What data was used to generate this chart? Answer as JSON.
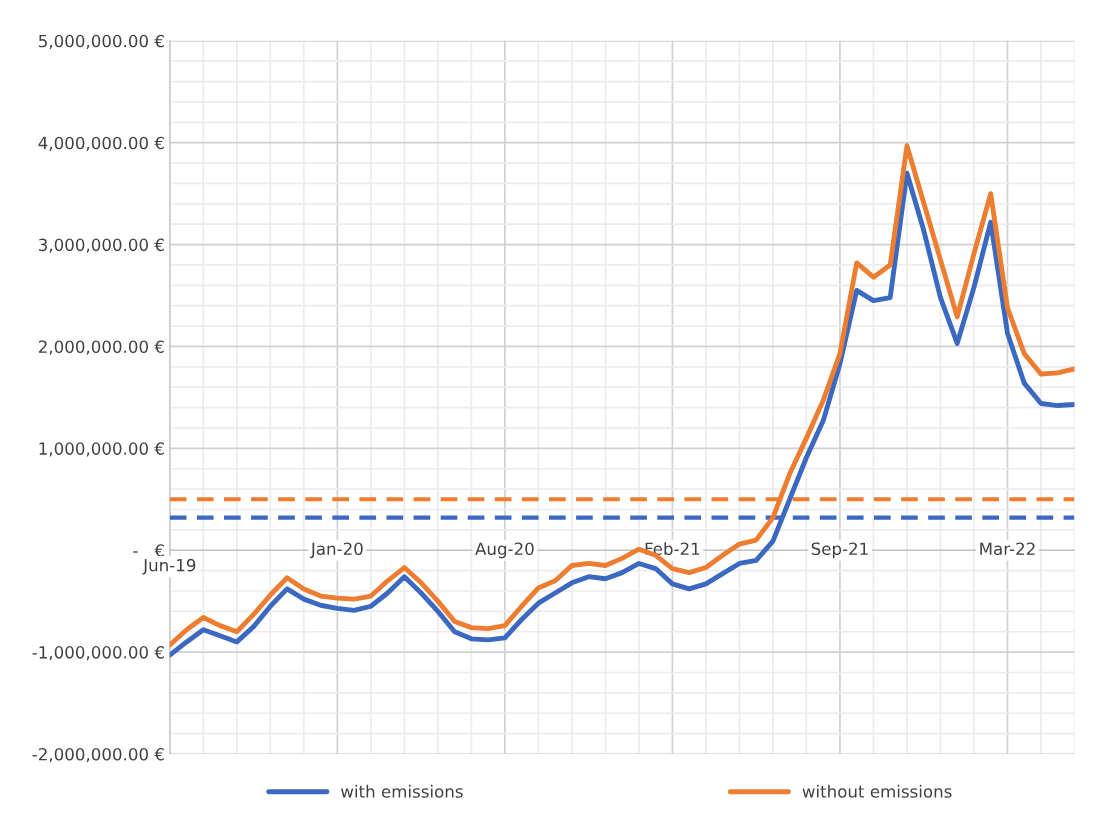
{
  "chart_data": {
    "type": "line",
    "categories": [
      "Jun-19",
      null,
      null,
      null,
      null,
      null,
      null,
      null,
      null,
      null,
      "Jan-20",
      null,
      null,
      null,
      null,
      null,
      null,
      null,
      null,
      null,
      "Aug-20",
      null,
      null,
      null,
      null,
      null,
      null,
      null,
      null,
      null,
      "Feb-21",
      null,
      null,
      null,
      null,
      null,
      null,
      null,
      null,
      null,
      "Sep-21",
      null,
      null,
      null,
      null,
      null,
      null,
      null,
      null,
      null,
      "Mar-22",
      null,
      null,
      null,
      null
    ],
    "series": [
      {
        "name": "with emissions",
        "color": "#3b68c0",
        "values": [
          -1030000,
          -900000,
          -780000,
          -840000,
          -900000,
          -750000,
          -550000,
          -380000,
          -480000,
          -540000,
          -570000,
          -590000,
          -550000,
          -420000,
          -260000,
          -420000,
          -600000,
          -800000,
          -870000,
          -880000,
          -860000,
          -680000,
          -520000,
          -420000,
          -320000,
          -260000,
          -280000,
          -220000,
          -130000,
          -180000,
          -330000,
          -380000,
          -330000,
          -230000,
          -130000,
          -100000,
          90000,
          500000,
          910000,
          1270000,
          1830000,
          2550000,
          2450000,
          2480000,
          3700000,
          3140000,
          2480000,
          2030000,
          2580000,
          3220000,
          2130000,
          1640000,
          1440000,
          1420000,
          1430000
        ]
      },
      {
        "name": "without emissions",
        "color": "#ed7d31",
        "values": [
          -930000,
          -780000,
          -660000,
          -740000,
          -800000,
          -630000,
          -440000,
          -270000,
          -380000,
          -450000,
          -470000,
          -480000,
          -450000,
          -300000,
          -170000,
          -320000,
          -500000,
          -700000,
          -760000,
          -770000,
          -740000,
          -550000,
          -370000,
          -300000,
          -150000,
          -130000,
          -150000,
          -80000,
          10000,
          -50000,
          -180000,
          -220000,
          -170000,
          -50000,
          60000,
          100000,
          320000,
          750000,
          1100000,
          1470000,
          1930000,
          2820000,
          2680000,
          2800000,
          3970000,
          3410000,
          2850000,
          2290000,
          2910000,
          3500000,
          2380000,
          1930000,
          1730000,
          1740000,
          1780000
        ]
      }
    ],
    "ylim": [
      -2000000,
      5000000
    ],
    "yticks": [
      {
        "value": -2000000,
        "label": "-2,000,000.00 €"
      },
      {
        "value": -1000000,
        "label": "-1,000,000.00 €"
      },
      {
        "value": 0,
        "label": "-   €"
      },
      {
        "value": 1000000,
        "label": "1,000,000.00 €"
      },
      {
        "value": 2000000,
        "label": "2,000,000.00 €"
      },
      {
        "value": 3000000,
        "label": "3,000,000.00 €"
      },
      {
        "value": 4000000,
        "label": "4,000,000.00 €"
      },
      {
        "value": 5000000,
        "label": "5,000,000.00 €"
      }
    ],
    "ref_lines": [
      {
        "axis": "y",
        "value": 500000,
        "color": "#ed7d31",
        "line_style": "dashed"
      },
      {
        "axis": "y",
        "value": 320000,
        "color": "#3b68c0",
        "line_style": "dashed"
      }
    ],
    "grid": true,
    "legend": "bottom",
    "marker": "none",
    "line_style": "solid"
  }
}
